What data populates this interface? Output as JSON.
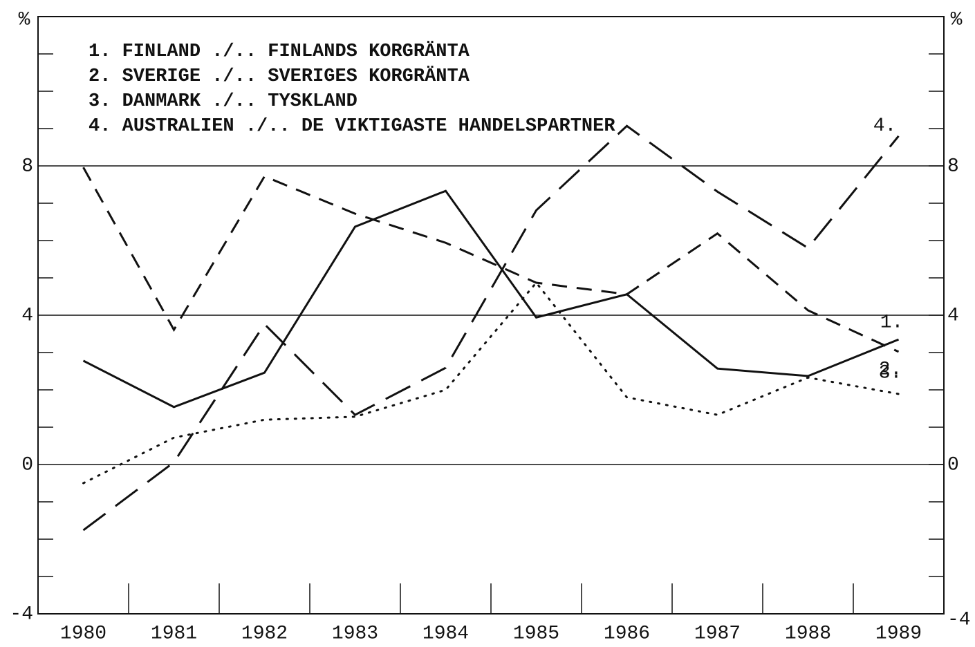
{
  "chart_data": {
    "type": "line",
    "ylabel": "%",
    "y2label": "%",
    "categories": [
      "1980",
      "1981",
      "1982",
      "1983",
      "1984",
      "1985",
      "1986",
      "1987",
      "1988",
      "1989"
    ],
    "ylim": [
      -4,
      12
    ],
    "yticks": [
      -4,
      0,
      4,
      8
    ],
    "yminor_ticks": [
      -3,
      -2,
      -1,
      1,
      2,
      3,
      5,
      6,
      7,
      9,
      10,
      11
    ],
    "y2lim": [
      -4,
      12
    ],
    "y2ticks": [
      -4,
      0,
      4,
      8
    ],
    "grid": true,
    "series": [
      {
        "name": "1. FINLAND ./.. FINLANDS KORGRÄNTA",
        "label": "1.",
        "color": "#111111",
        "style": "solid",
        "values": [
          2.78,
          1.54,
          2.46,
          6.37,
          7.33,
          3.94,
          4.56,
          2.57,
          2.37,
          3.35
        ]
      },
      {
        "name": "2. SVERIGE ./.. SVERIGES KORGRÄNTA",
        "label": "2.",
        "color": "#111111",
        "style": "dotted",
        "values": [
          -0.5,
          0.72,
          1.2,
          1.28,
          2.0,
          4.87,
          1.8,
          1.33,
          2.33,
          1.89
        ]
      },
      {
        "name": "3. DANMARK ./.. TYSKLAND",
        "label": "3.",
        "color": "#111111",
        "style": "dashed",
        "values": [
          7.96,
          3.61,
          7.72,
          6.72,
          5.94,
          4.87,
          4.56,
          6.19,
          4.13,
          3.02
        ]
      },
      {
        "name": "4. AUSTRALIEN ./.. DE VIKTIGASTE HANDELSPARTNER",
        "label": "4.",
        "color": "#111111",
        "style": "longdash",
        "values": [
          -1.76,
          0.06,
          3.76,
          1.33,
          2.59,
          6.81,
          9.07,
          7.31,
          5.8,
          8.8
        ]
      }
    ]
  }
}
